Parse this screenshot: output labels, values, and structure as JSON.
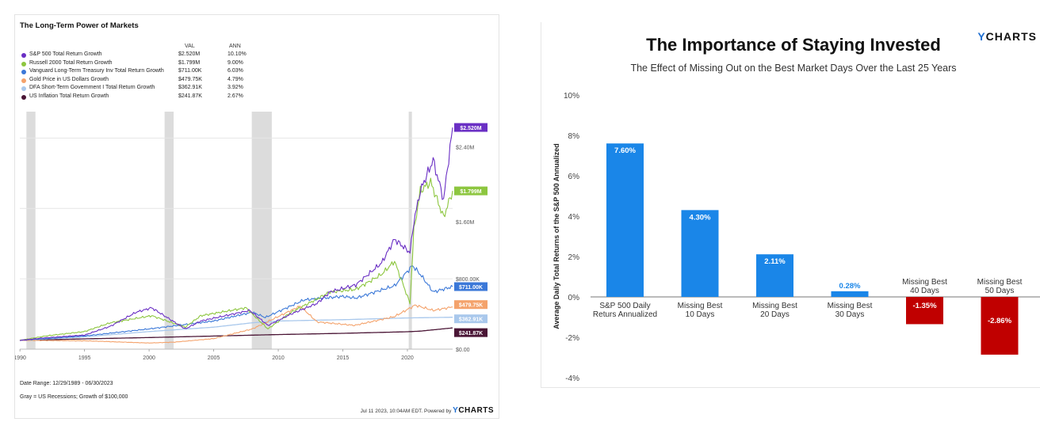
{
  "left_panel": {
    "title": "The Long-Term Power of Markets",
    "legend_headers": {
      "val": "VAL",
      "ann": "ANN"
    },
    "footer": {
      "date_range": "Date Range: 12/29/1989 - 06/30/2023",
      "note": "Gray = US Recessions;  Growth of $100,000",
      "timestamp": "Jul 11 2023, 10:04AM EDT. Powered by",
      "brand": "YCHARTS"
    }
  },
  "right_panel": {
    "title": "The Importance of Staying Invested",
    "subtitle": "The Effect of Missing Out on the Best Market Days Over the Last 25 Years",
    "brand": "YCHARTS"
  },
  "chart_data": [
    {
      "type": "line",
      "title": "The Long-Term Power of Markets",
      "xlim": [
        1989.99,
        2023.5
      ],
      "ylim": [
        0,
        2700000
      ],
      "x_ticks": [
        "1990",
        "1995",
        "2000",
        "2005",
        "2010",
        "2015",
        "2020"
      ],
      "y_tick_labels": [
        "$0.00",
        "$800.00K",
        "$1.60M",
        "$2.40M"
      ],
      "y_ticks": [
        0,
        800000,
        1600000,
        2400000
      ],
      "recessions": [
        [
          1990.5,
          1991.2
        ],
        [
          2001.2,
          2001.9
        ],
        [
          2007.95,
          2009.5
        ],
        [
          2020.1,
          2020.35
        ]
      ],
      "legend_position": "top-left",
      "series": [
        {
          "name": "S&P 500 Total Return Growth",
          "val": "$2.520M",
          "ann": "10.10%",
          "label": "$2.520M",
          "color": "#6a2fc4",
          "x": [
            1989.99,
            1992,
            1995,
            1997,
            1999,
            2000.2,
            2002.8,
            2004,
            2007.8,
            2009.2,
            2011,
            2013,
            2014,
            2016,
            2018,
            2019,
            2020.2,
            2020.5,
            2021,
            2021.99,
            2022.8,
            2023.5
          ],
          "y": [
            100000,
            130000,
            160000,
            260000,
            420000,
            470000,
            230000,
            320000,
            440000,
            270000,
            400000,
            520000,
            650000,
            730000,
            980000,
            1250000,
            1100000,
            1450000,
            1800000,
            2150000,
            1700000,
            2520000
          ]
        },
        {
          "name": "Russell 2000 Total Return Growth",
          "val": "$1.799M",
          "ann": "9.00%",
          "label": "$1.799M",
          "color": "#8dc63f",
          "x": [
            1989.99,
            1992,
            1995,
            1997,
            1999,
            2000.2,
            2002.8,
            2004,
            2007.5,
            2009.2,
            2011,
            2013,
            2014,
            2016,
            2018,
            2019,
            2020.2,
            2020.5,
            2021,
            2021.8,
            2022.8,
            2023.5
          ],
          "y": [
            100000,
            150000,
            200000,
            300000,
            350000,
            380000,
            250000,
            380000,
            470000,
            230000,
            420000,
            570000,
            650000,
            680000,
            850000,
            1000000,
            520000,
            1350000,
            1800000,
            1900000,
            1500000,
            1799000
          ]
        },
        {
          "name": "Vanguard Long-Term Treasury Inv Total Return Growth",
          "val": "$711.00K",
          "ann": "6.03%",
          "label": "$711.00K",
          "color": "#3b78d8",
          "x": [
            1989.99,
            1995,
            2000,
            2005,
            2008,
            2009,
            2012,
            2015,
            2016,
            2019,
            2020.4,
            2021,
            2022,
            2023.5
          ],
          "y": [
            100000,
            150000,
            230000,
            320000,
            420000,
            360000,
            560000,
            600000,
            580000,
            720000,
            950000,
            850000,
            650000,
            711000
          ]
        },
        {
          "name": "Gold Price in US Dollars Growth",
          "val": "$479.75K",
          "ann": "4.79%",
          "label": "$479.75K",
          "color": "#f4a26b",
          "x": [
            1989.99,
            1995,
            2000,
            2002,
            2005,
            2008,
            2011.7,
            2013,
            2015.9,
            2019,
            2020.6,
            2022,
            2023.5
          ],
          "y": [
            100000,
            95000,
            70000,
            80000,
            120000,
            230000,
            490000,
            310000,
            270000,
            370000,
            500000,
            440000,
            479750
          ]
        },
        {
          "name": "DFA Short-Term Government I Total Return Growth",
          "val": "$362.91K",
          "ann": "3.92%",
          "label": "$362.91K",
          "color": "#a9c8ec",
          "x": [
            1989.99,
            1995,
            2000,
            2005,
            2008,
            2010,
            2015,
            2020,
            2023.5
          ],
          "y": [
            100000,
            140000,
            200000,
            250000,
            300000,
            320000,
            335000,
            355000,
            362910
          ]
        },
        {
          "name": "US Inflation Total Return Growth",
          "val": "$241.87K",
          "ann": "2.67%",
          "label": "$241.87K",
          "color": "#4a1535",
          "x": [
            1989.99,
            1995,
            2000,
            2005,
            2010,
            2015,
            2020,
            2021,
            2023.5
          ],
          "y": [
            100000,
            117000,
            132000,
            149000,
            166000,
            180000,
            198000,
            205000,
            241870
          ]
        }
      ],
      "axis_value_labels": [
        "$2.40M",
        "$1.60M",
        "$800.00K",
        "$0.00"
      ]
    },
    {
      "type": "bar",
      "title": "The Importance of Staying Invested",
      "subtitle": "The Effect of Missing Out on the Best Market Days Over the Last 25 Years",
      "ylabel": "Average Daily Total Returns of the S&P 500 Annualized",
      "ylim": [
        -4,
        10
      ],
      "y_ticks": [
        -4,
        -2,
        0,
        2,
        4,
        6,
        8,
        10
      ],
      "y_tick_labels": [
        "-4%",
        "-2%",
        "0%",
        "2%",
        "4%",
        "6%",
        "8%",
        "10%"
      ],
      "categories": [
        [
          "S&P 500 Daily",
          "Returs Annualized"
        ],
        [
          "Missing Best",
          "10 Days"
        ],
        [
          "Missing Best",
          "20 Days"
        ],
        [
          "Missing Best",
          "30 Days"
        ],
        [
          "Missing Best",
          "40 Days"
        ],
        [
          "Missing Best",
          "50 Days"
        ]
      ],
      "values": [
        7.6,
        4.3,
        2.11,
        0.28,
        -1.35,
        -2.86
      ],
      "value_labels": [
        "7.60%",
        "4.30%",
        "2.11%",
        "0.28%",
        "-1.35%",
        "-2.86%"
      ],
      "colors": {
        "positive": "#1a86e8",
        "negative": "#c00000"
      }
    }
  ]
}
